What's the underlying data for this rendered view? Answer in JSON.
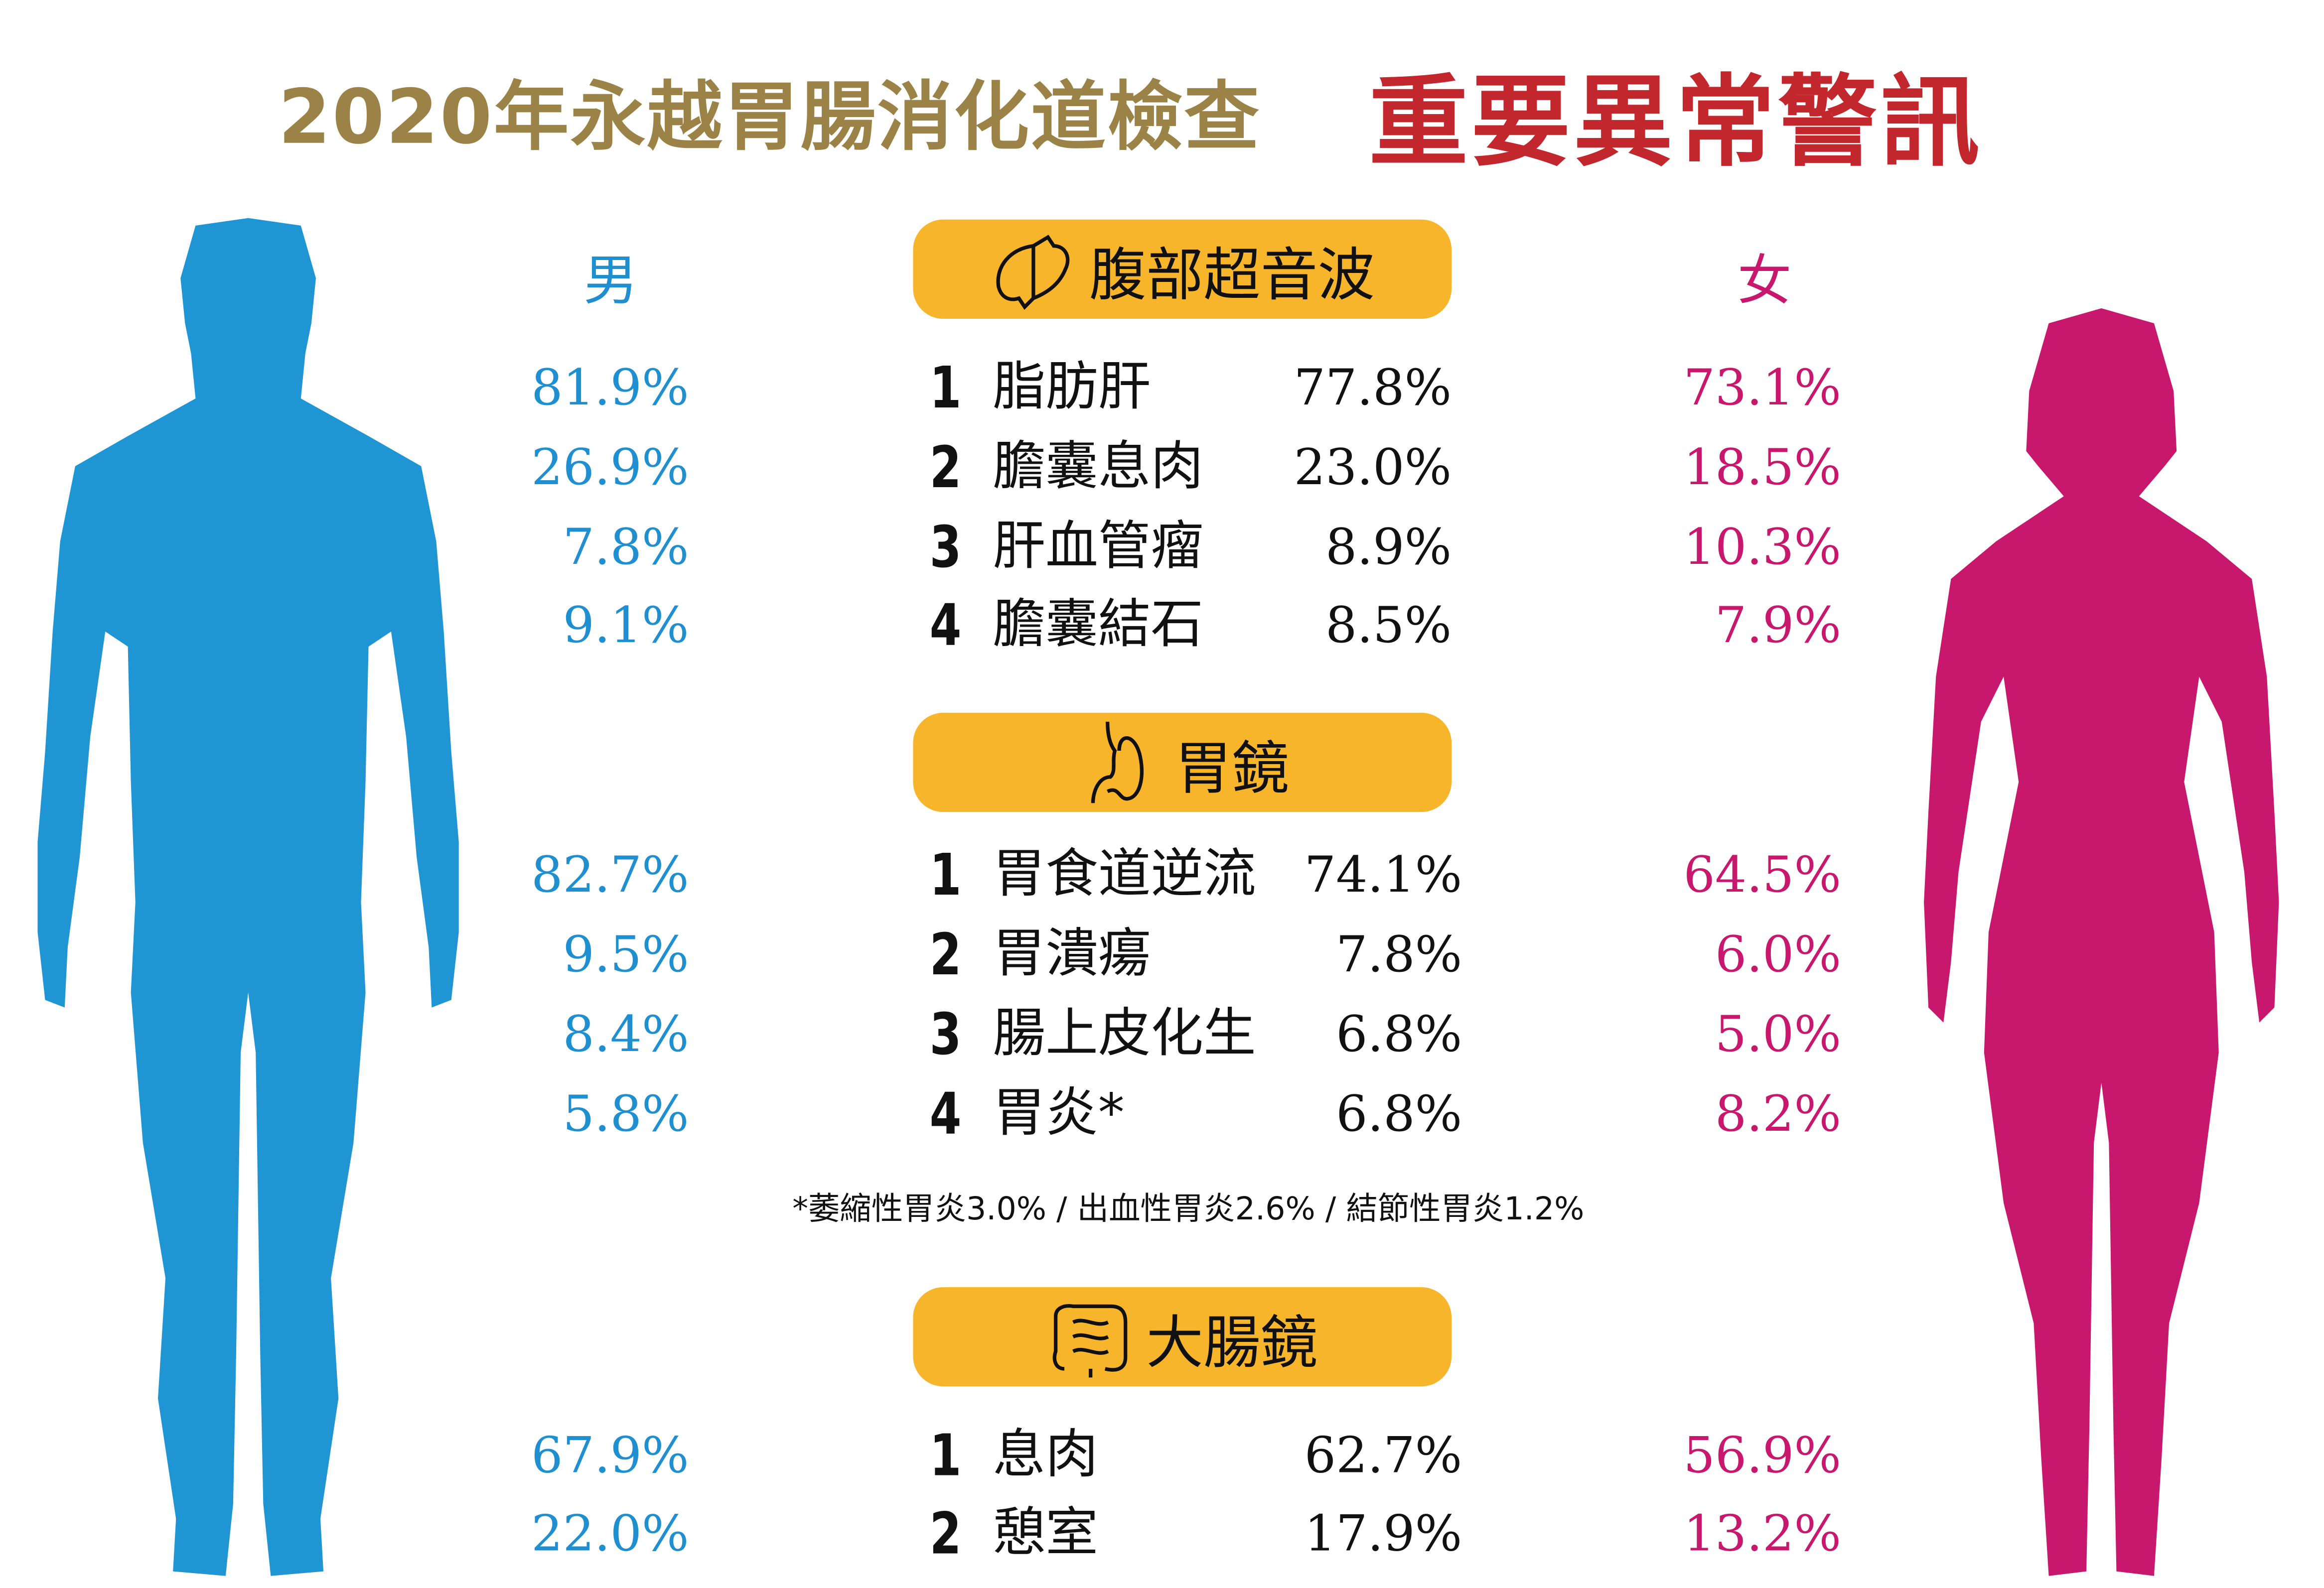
{
  "title": {
    "main": "2020年永越胃腸消化道檢查",
    "highlight": "重要異常警訊"
  },
  "labels": {
    "male": "男",
    "female": "女"
  },
  "colors": {
    "title": "#9b8246",
    "highlight": "#c1272d",
    "male": "#1f8fcf",
    "female": "#c8186e",
    "section": "#f7b52c"
  },
  "sections": [
    {
      "title": "腹部超音波",
      "icon": "liver-icon",
      "rows": [
        {
          "male": "81.9%",
          "rank": "1",
          "name": "脂肪肝",
          "overall": "77.8%",
          "female": "73.1%"
        },
        {
          "male": "26.9%",
          "rank": "2",
          "name": "膽囊息肉",
          "overall": "23.0%",
          "female": "18.5%"
        },
        {
          "male": "7.8%",
          "rank": "3",
          "name": "肝血管瘤",
          "overall": "8.9%",
          "female": "10.3%"
        },
        {
          "male": "9.1%",
          "rank": "4",
          "name": "膽囊結石",
          "overall": "8.5%",
          "female": "7.9%"
        }
      ]
    },
    {
      "title": "胃鏡",
      "icon": "stomach-icon",
      "rows": [
        {
          "male": "82.7%",
          "rank": "1",
          "name": "胃食道逆流",
          "overall": "74.1%",
          "female": "64.5%"
        },
        {
          "male": "9.5%",
          "rank": "2",
          "name": "胃潰瘍",
          "overall": "7.8%",
          "female": "6.0%"
        },
        {
          "male": "8.4%",
          "rank": "3",
          "name": "腸上皮化生",
          "overall": "6.8%",
          "female": "5.0%"
        },
        {
          "male": "5.8%",
          "rank": "4",
          "name": "胃炎*",
          "overall": "6.8%",
          "female": "8.2%"
        }
      ]
    },
    {
      "title": "大腸鏡",
      "icon": "intestine-icon",
      "rows": [
        {
          "male": "67.9%",
          "rank": "1",
          "name": "息肉",
          "overall": "62.7%",
          "female": "56.9%"
        },
        {
          "male": "22.0%",
          "rank": "2",
          "name": "憩室",
          "overall": "17.9%",
          "female": "13.2%"
        }
      ]
    }
  ],
  "footnote": "*萎縮性胃炎3.0% / 出血性胃炎2.6% / 結節性胃炎1.2%"
}
